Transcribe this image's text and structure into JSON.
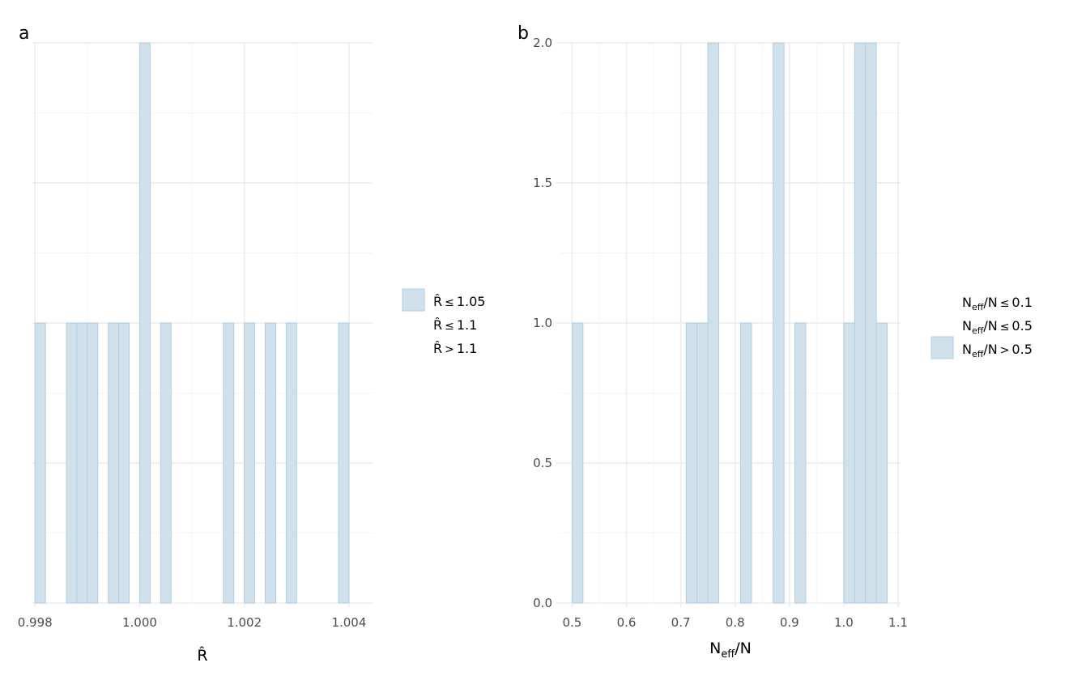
{
  "chart_data": [
    {
      "type": "bar",
      "panel_label": "a",
      "xlabel": "R̂",
      "x_tick_labels": [
        "0.998",
        "1.000",
        "1.002",
        "1.004"
      ],
      "x_ticks": [
        0.998,
        1.0,
        1.002,
        1.004
      ],
      "xlim": [
        0.99795,
        1.00445
      ],
      "ylim": [
        0,
        2
      ],
      "y_tick_labels_shown": false,
      "grid": true,
      "bin_width": 0.0002,
      "bar_fill": "#d1e1ec",
      "bar_stroke": "#b3cde0",
      "bars": [
        {
          "x": 0.9981,
          "value": 1
        },
        {
          "x": 0.9987,
          "value": 1
        },
        {
          "x": 0.9989,
          "value": 1
        },
        {
          "x": 0.9991,
          "value": 1
        },
        {
          "x": 0.9995,
          "value": 1
        },
        {
          "x": 0.9997,
          "value": 1
        },
        {
          "x": 1.0001,
          "value": 2
        },
        {
          "x": 1.0005,
          "value": 1
        },
        {
          "x": 1.0017,
          "value": 1
        },
        {
          "x": 1.0021,
          "value": 1
        },
        {
          "x": 1.0025,
          "value": 1
        },
        {
          "x": 1.0029,
          "value": 1
        },
        {
          "x": 1.0039,
          "value": 1
        }
      ],
      "legend": {
        "placement": "right",
        "entries": [
          {
            "pre": "R̂",
            "op": "≤",
            "num": "1.05",
            "swatch": true
          },
          {
            "pre": "R̂",
            "op": "≤",
            "num": "1.1",
            "swatch": false
          },
          {
            "pre": "R̂",
            "op": ">",
            "num": "1.1",
            "swatch": false
          }
        ]
      }
    },
    {
      "type": "bar",
      "panel_label": "b",
      "xlabel_main": "N",
      "xlabel_sub": "eff",
      "xlabel_rest": "/N",
      "x_tick_labels": [
        "0.5",
        "0.6",
        "0.7",
        "0.8",
        "0.9",
        "1.0",
        "1.1"
      ],
      "x_ticks": [
        0.5,
        0.6,
        0.7,
        0.8,
        0.9,
        1.0,
        1.1
      ],
      "y_tick_labels": [
        "0.0",
        "0.5",
        "1.0",
        "1.5",
        "2.0"
      ],
      "y_ticks": [
        0,
        0.5,
        1.0,
        1.5,
        2.0
      ],
      "xlim": [
        0.4785,
        1.1045
      ],
      "ylim": [
        0,
        2
      ],
      "grid": true,
      "bin_width": 0.02,
      "bar_fill": "#d1e1ec",
      "bar_stroke": "#b3cde0",
      "bars": [
        {
          "x": 0.51,
          "value": 1
        },
        {
          "x": 0.72,
          "value": 1
        },
        {
          "x": 0.74,
          "value": 1
        },
        {
          "x": 0.76,
          "value": 2
        },
        {
          "x": 0.82,
          "value": 1
        },
        {
          "x": 0.88,
          "value": 2
        },
        {
          "x": 0.92,
          "value": 1
        },
        {
          "x": 1.01,
          "value": 1
        },
        {
          "x": 1.03,
          "value": 2
        },
        {
          "x": 1.05,
          "value": 2
        },
        {
          "x": 1.07,
          "value": 1
        }
      ],
      "legend": {
        "placement": "right",
        "entries": [
          {
            "pre": "N",
            "sub": "eff",
            "mid": "/N",
            "op": "≤",
            "num": "0.1",
            "swatch": false
          },
          {
            "pre": "N",
            "sub": "eff",
            "mid": "/N",
            "op": "≤",
            "num": "0.5",
            "swatch": false
          },
          {
            "pre": "N",
            "sub": "eff",
            "mid": "/N",
            "op": ">",
            "num": "0.5",
            "swatch": true
          }
        ]
      }
    }
  ],
  "colors": {
    "grid_major": "#ebebeb",
    "grid_minor": "#f5f5f5",
    "tick_mark": "#ebebeb"
  }
}
